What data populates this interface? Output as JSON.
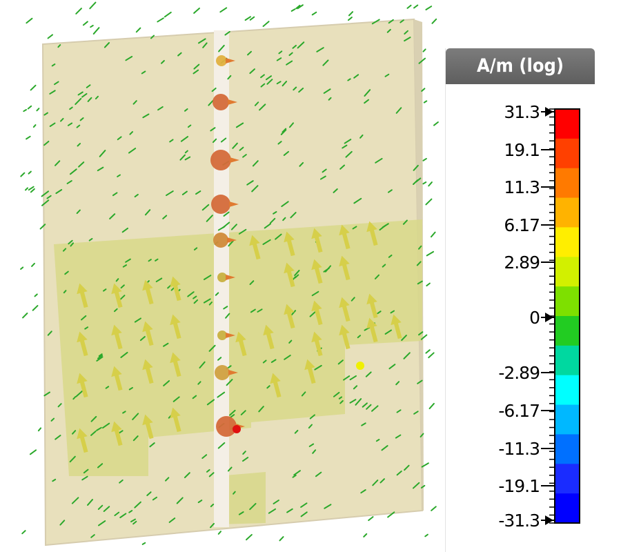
{
  "legend": {
    "unit_label": "A/m (log)",
    "ticks": [
      "31.3",
      "19.1",
      "11.3",
      "6.17",
      "2.89",
      "0",
      "-2.89",
      "-6.17",
      "-11.3",
      "-19.1",
      "-31.3"
    ],
    "colors": [
      "#ff0000",
      "#ff4000",
      "#ff7a00",
      "#ffb300",
      "#ffee00",
      "#d2f000",
      "#7ee000",
      "#22cc22",
      "#00d8a0",
      "#00ffff",
      "#00b8ff",
      "#0070ff",
      "#1a2cff",
      "#0000ff"
    ]
  },
  "scene": {
    "board_color": "#e8e0bc",
    "substrate_color": "#d8d88a",
    "trace_color": "#f4efe6",
    "small_arrow_color": "#2aa82a",
    "large_arrow_color": "#d6cf4a",
    "hotspot_color": "#d46a3a"
  }
}
